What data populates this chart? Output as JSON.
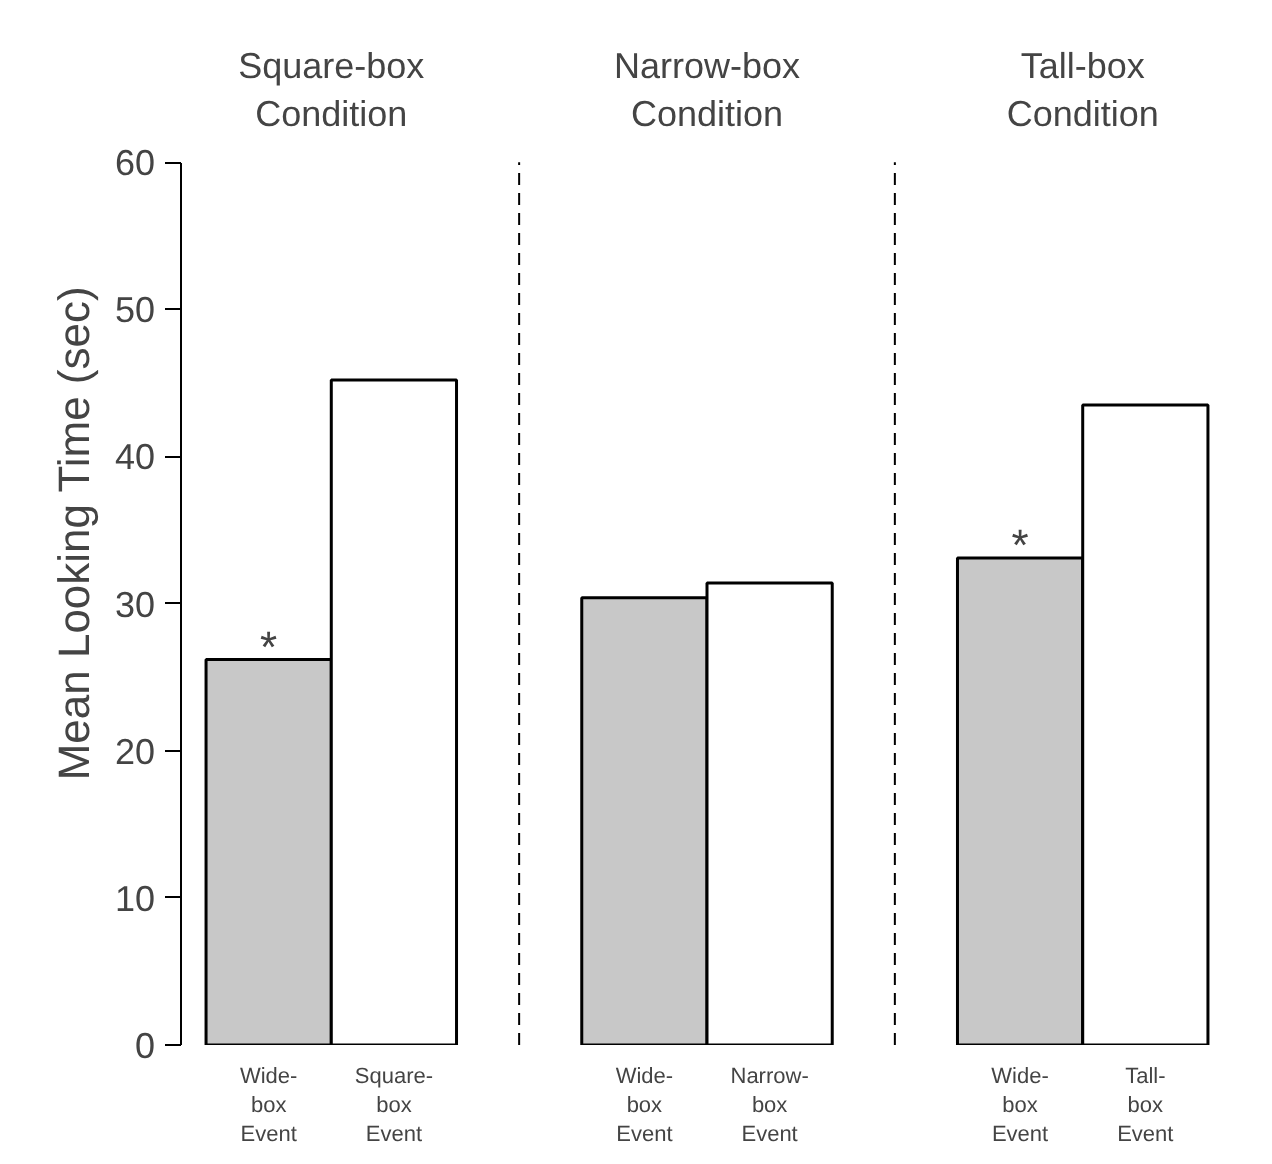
{
  "chart_data": {
    "type": "bar",
    "ylabel": "Mean Looking Time (sec)",
    "categories": [
      "Wide-\nbox\nEvent",
      "Square-\nbox\nEvent",
      "Wide-\nbox\nEvent",
      "Narrow-\nbox\nEvent",
      "Wide-\nbox\nEvent",
      "Tall-\nbox\nEvent"
    ],
    "values": [
      26.2,
      45.2,
      30.4,
      31.4,
      33.1,
      43.5
    ],
    "colors": [
      "#c8c8c8",
      "#ffffff",
      "#c8c8c8",
      "#ffffff",
      "#c8c8c8",
      "#ffffff"
    ],
    "ylim": [
      0,
      60
    ],
    "yticks": [
      0,
      10,
      20,
      30,
      40,
      50,
      60
    ],
    "value_labels": [
      "*",
      null,
      null,
      null,
      "*",
      null
    ],
    "grid": false,
    "annotations": [
      "Square-box\nCondition",
      "Narrow-box\nCondition",
      "Tall-box\nCondition"
    ]
  }
}
